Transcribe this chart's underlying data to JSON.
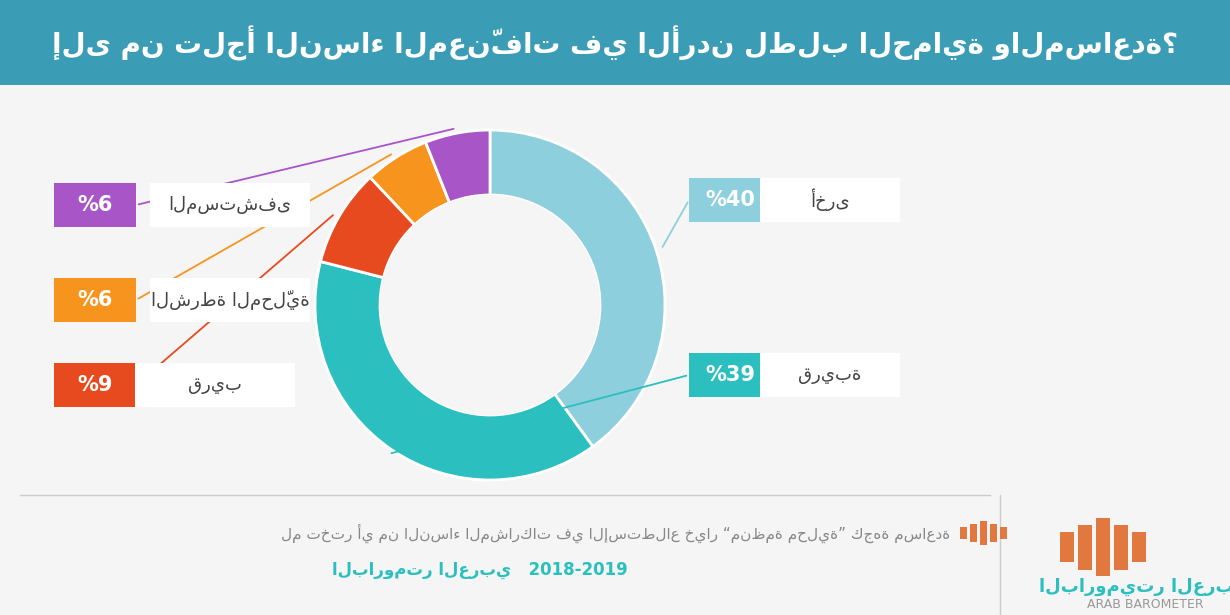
{
  "title": "إلى من تلجأ النساء المعنّفات في الأردن لطلب الحماية والمساعدة؟",
  "slices": [
    40,
    39,
    9,
    6,
    6
  ],
  "labels_ar": [
    "أخرى",
    "قريبة",
    "قريب",
    "الشرطة المحلّية",
    "المستشفى"
  ],
  "colors": [
    "#8DCFDC",
    "#2BBFBF",
    "#E84A1F",
    "#F7941D",
    "#A855C8"
  ],
  "background_color": "#F5F5F5",
  "note_text": "لم تختر أي من النساء المشاركات في الإستطلاع خيار “منظمة محلية” كجهة مساعدة",
  "footer_text": "البارومتر العربي   2018-2019",
  "brand_ar": "الباروميتر العربي",
  "brand_en": "ARAB BAROMETER",
  "title_bg": "#3A9DB5",
  "title_text_color": "#FFFFFF"
}
